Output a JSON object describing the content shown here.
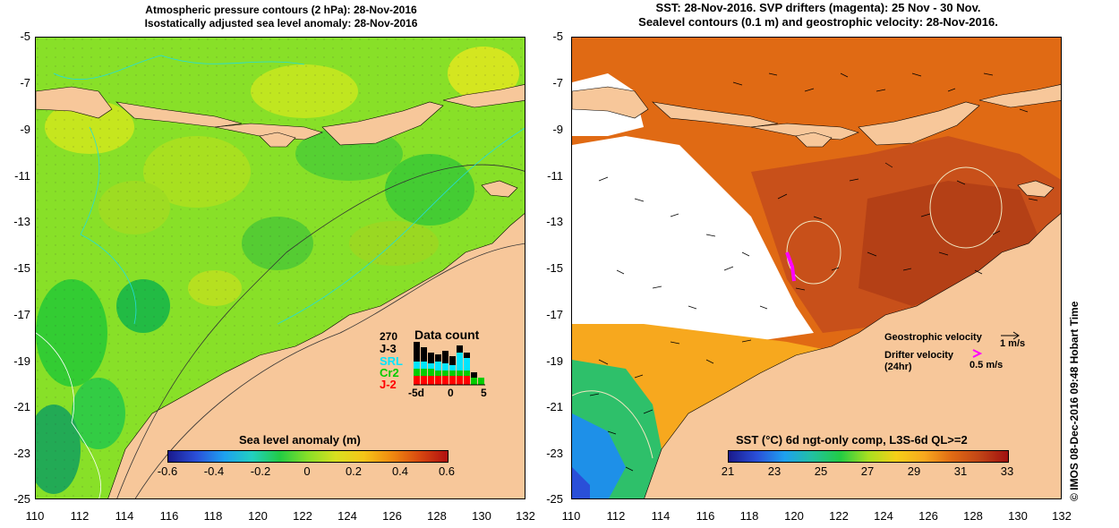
{
  "left": {
    "title_line1": "Atmospheric pressure contours (2 hPa): 28-Nov-2016",
    "title_line2": "Isostatically adjusted sea level anomaly: 28-Nov-2016",
    "colorbar": {
      "title": "Sea level anomaly (m)",
      "ticks": [
        "-0.6",
        "-0.4",
        "-0.2",
        "0",
        "0.2",
        "0.4",
        "0.6"
      ],
      "range": [
        -0.6,
        0.6
      ]
    },
    "data_count": {
      "title": "Data count",
      "max_label": "270",
      "series": [
        {
          "name": "J-3",
          "color": "#000000"
        },
        {
          "name": "SRL",
          "color": "#00e5ff"
        },
        {
          "name": "Cr2",
          "color": "#00cc00"
        },
        {
          "name": "J-2",
          "color": "#ff0000"
        }
      ],
      "x_ticks": [
        "-5d",
        "0",
        "5"
      ]
    }
  },
  "right": {
    "title_line1": "SST: 28-Nov-2016. SVP drifters (magenta): 25 Nov - 30 Nov.",
    "title_line2": "Sealevel contours (0.1 m) and geostrophic velocity: 28-Nov-2016.",
    "colorbar": {
      "title": "SST (°C) 6d ngt-only comp, L3S-6d QL>=2",
      "ticks": [
        "21",
        "23",
        "25",
        "27",
        "29",
        "31",
        "33"
      ],
      "range": [
        21,
        33
      ]
    },
    "legend": {
      "geostrophic_label": "Geostrophic velocity",
      "geostrophic_scale": "1 m/s",
      "drifter_label": "Drifter velocity",
      "drifter_period": "(24hr)",
      "drifter_scale": "0.5 m/s"
    }
  },
  "axes": {
    "x_ticks": [
      "110",
      "112",
      "114",
      "116",
      "118",
      "120",
      "122",
      "124",
      "126",
      "128",
      "130",
      "132"
    ],
    "y_ticks": [
      "-5",
      "-7",
      "-9",
      "-11",
      "-13",
      "-15",
      "-17",
      "-19",
      "-21",
      "-23",
      "-25"
    ]
  },
  "footer": "© IMOS 08-Dec-2016 09:48 Hobart Time",
  "colors": {
    "land": "#f7c79a",
    "sla_mid": "#66dd22",
    "sst_warm": "#d2691e",
    "drifter": "#ff00ff"
  }
}
